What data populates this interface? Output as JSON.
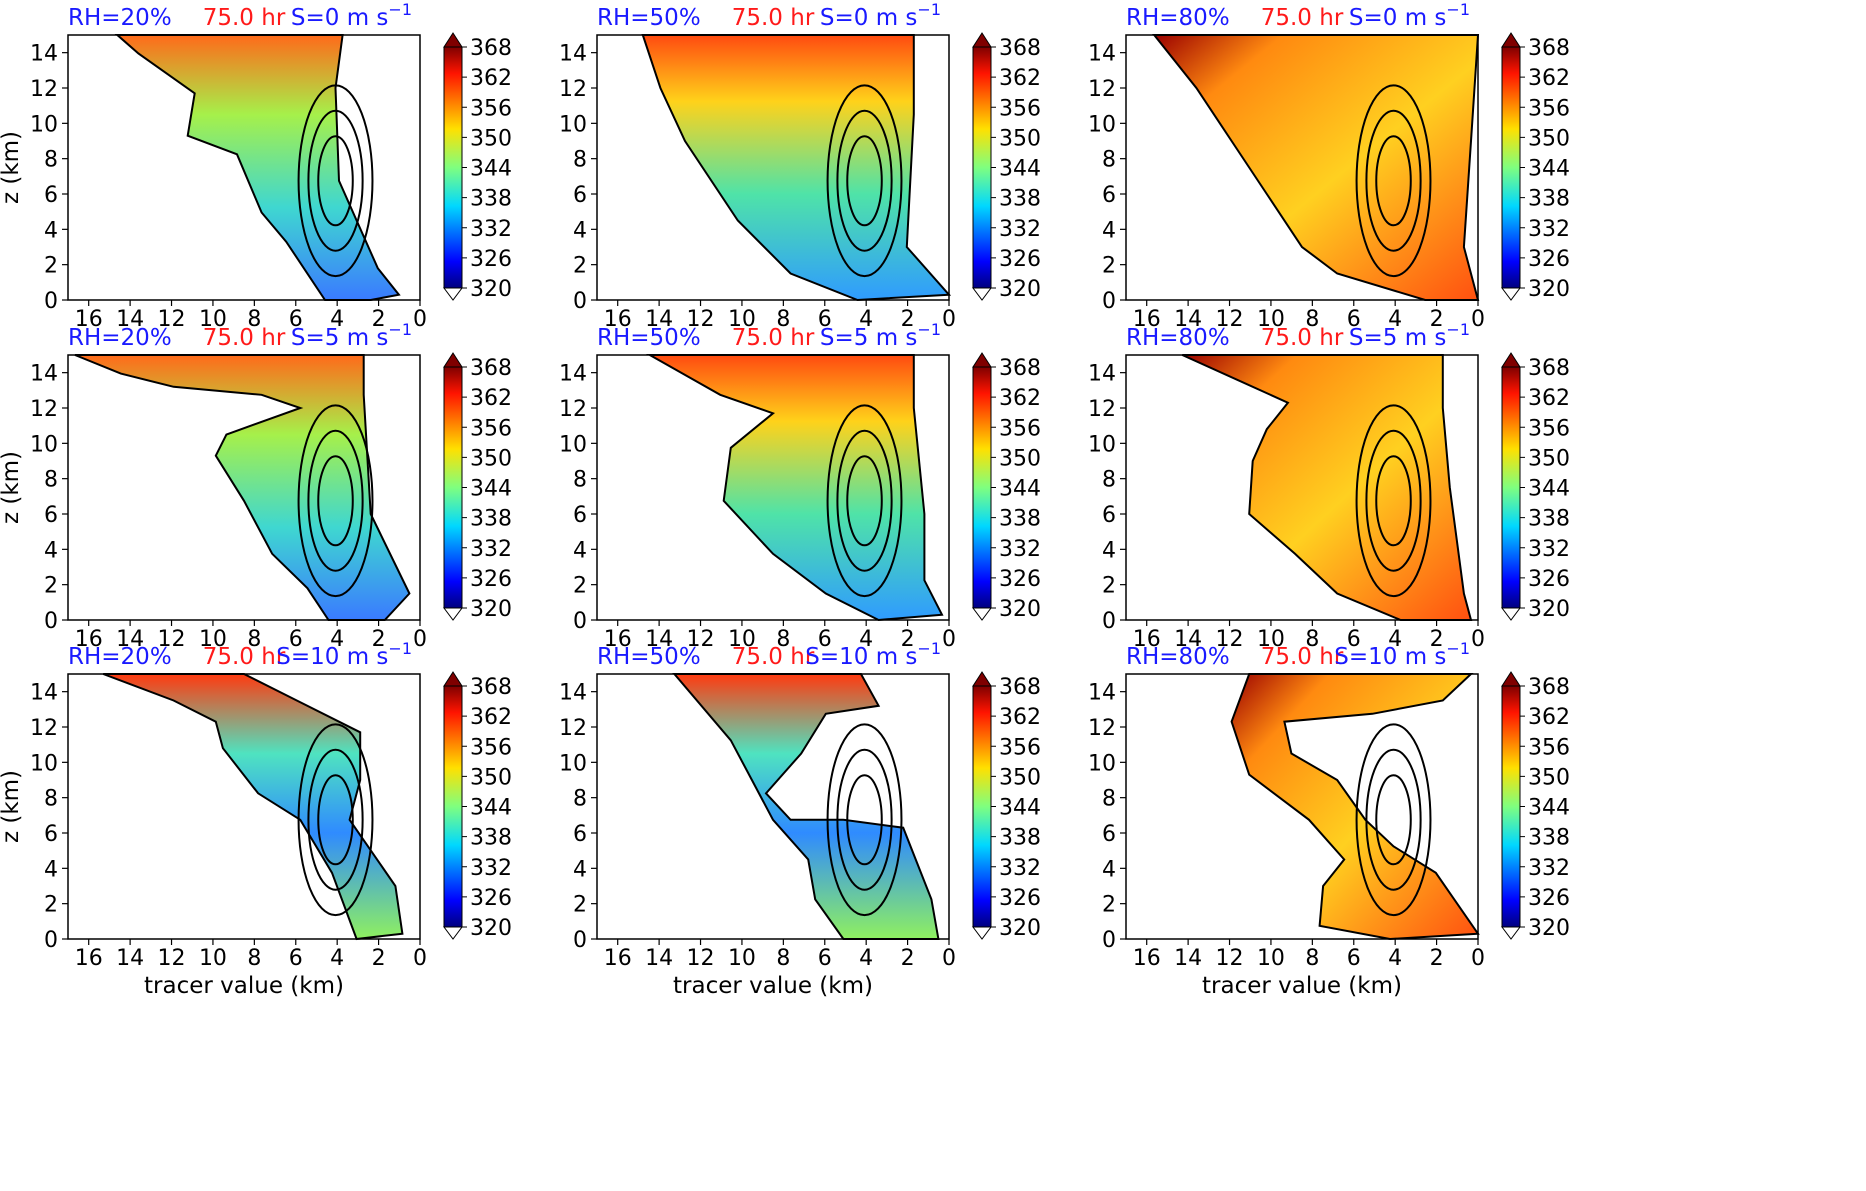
{
  "figure": {
    "xlabel": "tracer value (km)",
    "ylabel": "z (km)",
    "time_label": "75.0 hr",
    "colors": {
      "rh_title": "#1a1aff",
      "time_title": "#ff1a1a",
      "shear_title": "#1a1aff",
      "contour": "#000000"
    }
  },
  "chart_data": [
    {
      "type": "heatmap",
      "rh": "RH=20%",
      "time": "75.0 hr",
      "shear": "S=0 m s",
      "shear_sup": "−1",
      "xlim": [
        17,
        0
      ],
      "ylim": [
        0,
        15
      ],
      "xticks": [
        16,
        14,
        12,
        10,
        8,
        6,
        4,
        2,
        0
      ],
      "yticks": [
        0,
        2,
        4,
        6,
        8,
        10,
        12,
        14
      ],
      "colorbar": {
        "ticks": [
          320,
          326,
          332,
          338,
          344,
          350,
          356,
          362,
          368
        ],
        "range": [
          320,
          368
        ]
      },
      "show_xlabel": false,
      "show_ylabel": true
    },
    {
      "type": "heatmap",
      "rh": "RH=50%",
      "time": "75.0 hr",
      "shear": "S=0 m s",
      "shear_sup": "−1",
      "xlim": [
        17,
        0
      ],
      "ylim": [
        0,
        15
      ],
      "xticks": [
        16,
        14,
        12,
        10,
        8,
        6,
        4,
        2,
        0
      ],
      "yticks": [
        0,
        2,
        4,
        6,
        8,
        10,
        12,
        14
      ],
      "colorbar": {
        "ticks": [
          320,
          326,
          332,
          338,
          344,
          350,
          356,
          362,
          368
        ],
        "range": [
          320,
          368
        ]
      },
      "show_xlabel": false,
      "show_ylabel": false
    },
    {
      "type": "heatmap",
      "rh": "RH=80%",
      "time": "75.0 hr",
      "shear": "S=0 m s",
      "shear_sup": "−1",
      "xlim": [
        17,
        0
      ],
      "ylim": [
        0,
        15
      ],
      "xticks": [
        16,
        14,
        12,
        10,
        8,
        6,
        4,
        2,
        0
      ],
      "yticks": [
        0,
        2,
        4,
        6,
        8,
        10,
        12,
        14
      ],
      "colorbar": {
        "ticks": [
          320,
          326,
          332,
          338,
          344,
          350,
          356,
          362,
          368
        ],
        "range": [
          320,
          368
        ]
      },
      "show_xlabel": false,
      "show_ylabel": false
    },
    {
      "type": "heatmap",
      "rh": "RH=20%",
      "time": "75.0 hr",
      "shear": "S=5 m s",
      "shear_sup": "−1",
      "xlim": [
        17,
        0
      ],
      "ylim": [
        0,
        15
      ],
      "xticks": [
        16,
        14,
        12,
        10,
        8,
        6,
        4,
        2,
        0
      ],
      "yticks": [
        0,
        2,
        4,
        6,
        8,
        10,
        12,
        14
      ],
      "colorbar": {
        "ticks": [
          320,
          326,
          332,
          338,
          344,
          350,
          356,
          362,
          368
        ],
        "range": [
          320,
          368
        ]
      },
      "show_xlabel": false,
      "show_ylabel": true
    },
    {
      "type": "heatmap",
      "rh": "RH=50%",
      "time": "75.0 hr",
      "shear": "S=5 m s",
      "shear_sup": "−1",
      "xlim": [
        17,
        0
      ],
      "ylim": [
        0,
        15
      ],
      "xticks": [
        16,
        14,
        12,
        10,
        8,
        6,
        4,
        2,
        0
      ],
      "yticks": [
        0,
        2,
        4,
        6,
        8,
        10,
        12,
        14
      ],
      "colorbar": {
        "ticks": [
          320,
          326,
          332,
          338,
          344,
          350,
          356,
          362,
          368
        ],
        "range": [
          320,
          368
        ]
      },
      "show_xlabel": false,
      "show_ylabel": false
    },
    {
      "type": "heatmap",
      "rh": "RH=80%",
      "time": "75.0 hr",
      "shear": "S=5 m s",
      "shear_sup": "−1",
      "xlim": [
        17,
        0
      ],
      "ylim": [
        0,
        15
      ],
      "xticks": [
        16,
        14,
        12,
        10,
        8,
        6,
        4,
        2,
        0
      ],
      "yticks": [
        0,
        2,
        4,
        6,
        8,
        10,
        12,
        14
      ],
      "colorbar": {
        "ticks": [
          320,
          326,
          332,
          338,
          344,
          350,
          356,
          362,
          368
        ],
        "range": [
          320,
          368
        ]
      },
      "show_xlabel": false,
      "show_ylabel": false
    },
    {
      "type": "heatmap",
      "rh": "RH=20%",
      "time": "75.0 hr",
      "shear": "S=10 m s",
      "shear_sup": "−1",
      "xlim": [
        17,
        0
      ],
      "ylim": [
        0,
        15
      ],
      "xticks": [
        16,
        14,
        12,
        10,
        8,
        6,
        4,
        2,
        0
      ],
      "yticks": [
        0,
        2,
        4,
        6,
        8,
        10,
        12,
        14
      ],
      "colorbar": {
        "ticks": [
          320,
          326,
          332,
          338,
          344,
          350,
          356,
          362,
          368
        ],
        "range": [
          320,
          368
        ]
      },
      "show_xlabel": true,
      "show_ylabel": true
    },
    {
      "type": "heatmap",
      "rh": "RH=50%",
      "time": "75.0 hr",
      "shear": "S=10 m s",
      "shear_sup": "−1",
      "xlim": [
        17,
        0
      ],
      "ylim": [
        0,
        15
      ],
      "xticks": [
        16,
        14,
        12,
        10,
        8,
        6,
        4,
        2,
        0
      ],
      "yticks": [
        0,
        2,
        4,
        6,
        8,
        10,
        12,
        14
      ],
      "colorbar": {
        "ticks": [
          320,
          326,
          332,
          338,
          344,
          350,
          356,
          362,
          368
        ],
        "range": [
          320,
          368
        ]
      },
      "show_xlabel": true,
      "show_ylabel": false
    },
    {
      "type": "heatmap",
      "rh": "RH=80%",
      "time": "75.0 hr",
      "shear": "S=10 m s",
      "shear_sup": "−1",
      "xlim": [
        17,
        0
      ],
      "ylim": [
        0,
        15
      ],
      "xticks": [
        16,
        14,
        12,
        10,
        8,
        6,
        4,
        2,
        0
      ],
      "yticks": [
        0,
        2,
        4,
        6,
        8,
        10,
        12,
        14
      ],
      "colorbar": {
        "ticks": [
          320,
          326,
          332,
          338,
          344,
          350,
          356,
          362,
          368
        ],
        "range": [
          320,
          368
        ]
      },
      "show_xlabel": true,
      "show_ylabel": false
    }
  ]
}
